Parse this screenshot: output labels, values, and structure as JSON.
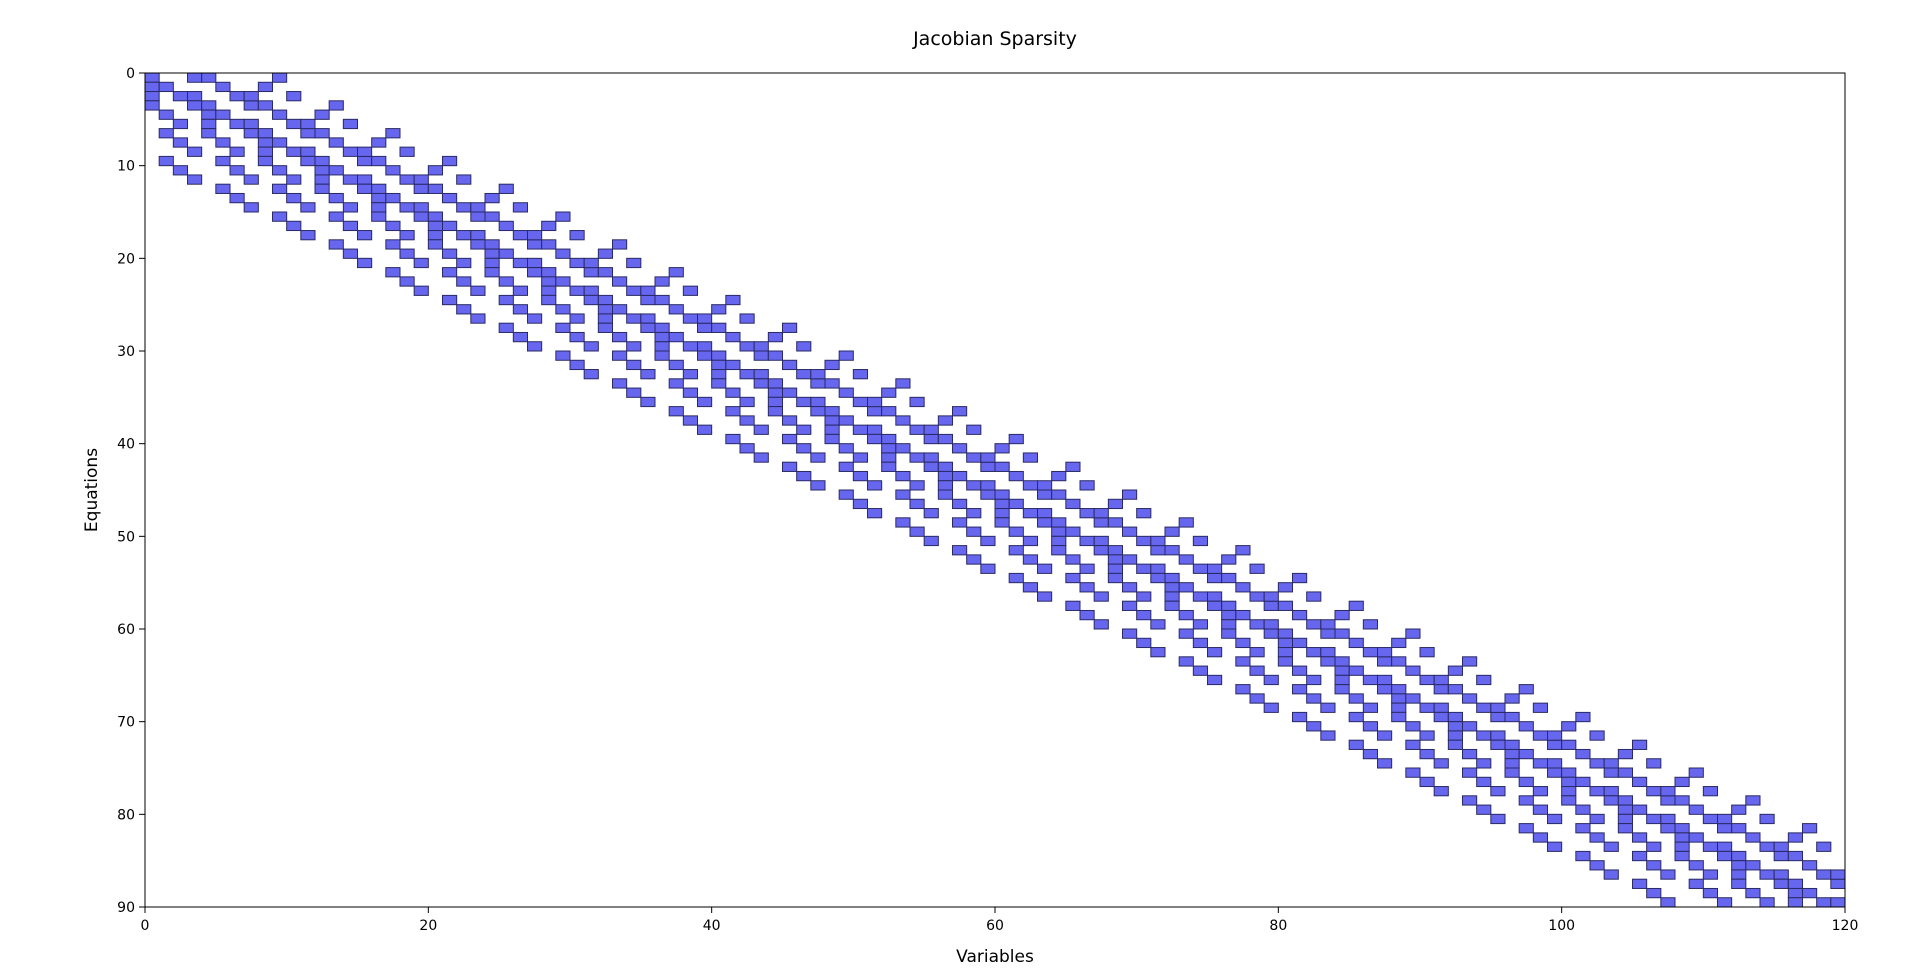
{
  "chart_data": {
    "type": "heatmap",
    "title": "Jacobian Sparsity",
    "xlabel": "Variables",
    "ylabel": "Equations",
    "xlim": [
      0,
      120
    ],
    "ylim": [
      90,
      0
    ],
    "x_ticks": [
      "0",
      "20",
      "40",
      "60",
      "80",
      "100",
      "120"
    ],
    "y_ticks": [
      "0",
      "10",
      "20",
      "30",
      "40",
      "50",
      "60",
      "70",
      "80",
      "90"
    ],
    "grid": false,
    "pattern": "block-banded sparse Jacobian: 30 blocks of 3 equations by 4 variables each, with coupling stencils to neighbouring blocks",
    "cell_color": "#6666ee",
    "cell_edge_color": "#2a2a66",
    "nonzeros": []
  }
}
